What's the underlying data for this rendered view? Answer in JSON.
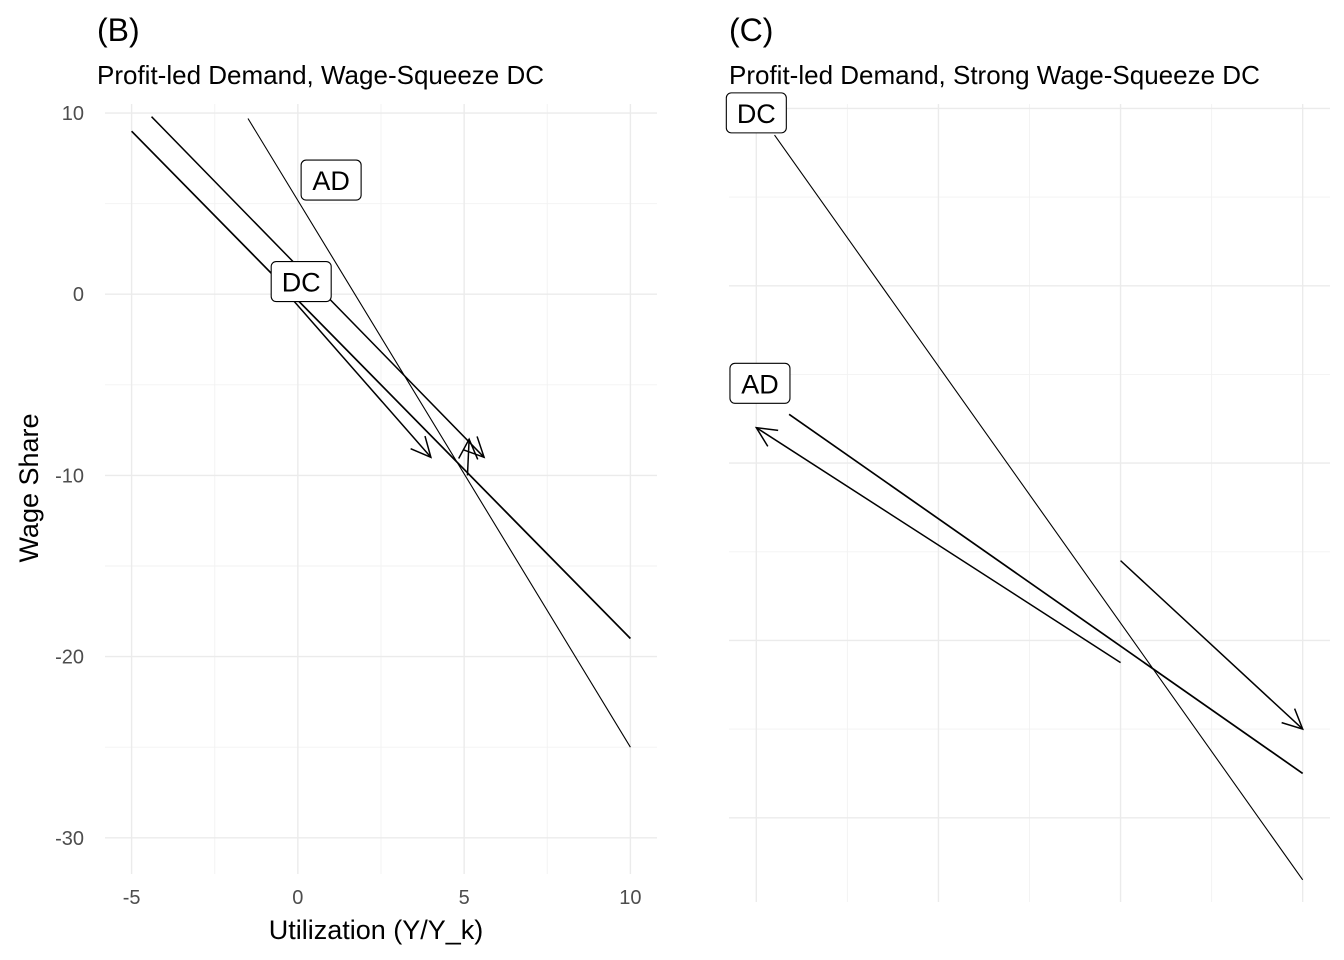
{
  "chart_data": [
    {
      "type": "line",
      "tag": "(B)",
      "title": "Profit-led Demand, Wage-Squeeze DC",
      "xlabel": "Utilization (Y/Y_k)",
      "ylabel": "Wage Share",
      "xlim": [
        -5.8,
        10.8
      ],
      "ylim": [
        -32,
        10.5
      ],
      "x_ticks": [
        -5,
        0,
        5,
        10
      ],
      "x_tick_labels": [
        "-5",
        "0",
        "5",
        "10"
      ],
      "y_ticks": [
        10,
        0,
        -10,
        -20,
        -30
      ],
      "y_tick_labels": [
        "10",
        "0",
        "-10",
        "-20",
        "-30"
      ],
      "grid": true,
      "series": [
        {
          "name": "DC",
          "x": [
            -5,
            10
          ],
          "y": [
            9,
            -19
          ],
          "stroke": "medium"
        },
        {
          "name": "AD",
          "x": [
            -1.5,
            10
          ],
          "y": [
            9.7,
            -25
          ],
          "stroke": "thin"
        }
      ],
      "arrows": [
        {
          "from": [
            -4.4,
            9.8
          ],
          "to": [
            5.6,
            -9.0
          ]
        },
        {
          "from": [
            -0.3,
            0.0
          ],
          "to": [
            4.0,
            -9.0
          ]
        },
        {
          "from": [
            5.1,
            -10.0
          ],
          "to": [
            5.15,
            -8.0
          ]
        }
      ],
      "labels": [
        {
          "text": "AD",
          "x": 1.0,
          "y": 6.3
        },
        {
          "text": "DC",
          "x": 0.1,
          "y": 0.7
        }
      ]
    },
    {
      "type": "line",
      "tag": "(C)",
      "title": "Profit-led Demand, Strong Wage-Squeeze DC",
      "xlabel": "",
      "ylabel": "",
      "xlim": [
        -0.15,
        3.15
      ],
      "ylim": [
        -2.95,
        6.05
      ],
      "x_ticks": [
        0,
        1,
        2,
        3
      ],
      "x_tick_labels": [],
      "y_ticks": [
        6,
        4,
        2,
        0,
        -2
      ],
      "y_tick_labels": [],
      "grid": true,
      "series": [
        {
          "name": "DC",
          "x": [
            0.1,
            3.0
          ],
          "y": [
            5.7,
            -2.7
          ],
          "stroke": "thin"
        },
        {
          "name": "AD",
          "x": [
            0.18,
            3.0
          ],
          "y": [
            2.55,
            -1.5
          ],
          "stroke": "medium"
        }
      ],
      "arrows": [
        {
          "from": [
            2.0,
            -0.25
          ],
          "to": [
            0.0,
            2.4
          ]
        },
        {
          "from": [
            2.0,
            0.9
          ],
          "to": [
            3.0,
            -1.0
          ]
        }
      ],
      "labels": [
        {
          "text": "DC",
          "x": 0.0,
          "y": 5.95
        },
        {
          "text": "AD",
          "x": 0.02,
          "y": 2.9
        }
      ]
    }
  ]
}
